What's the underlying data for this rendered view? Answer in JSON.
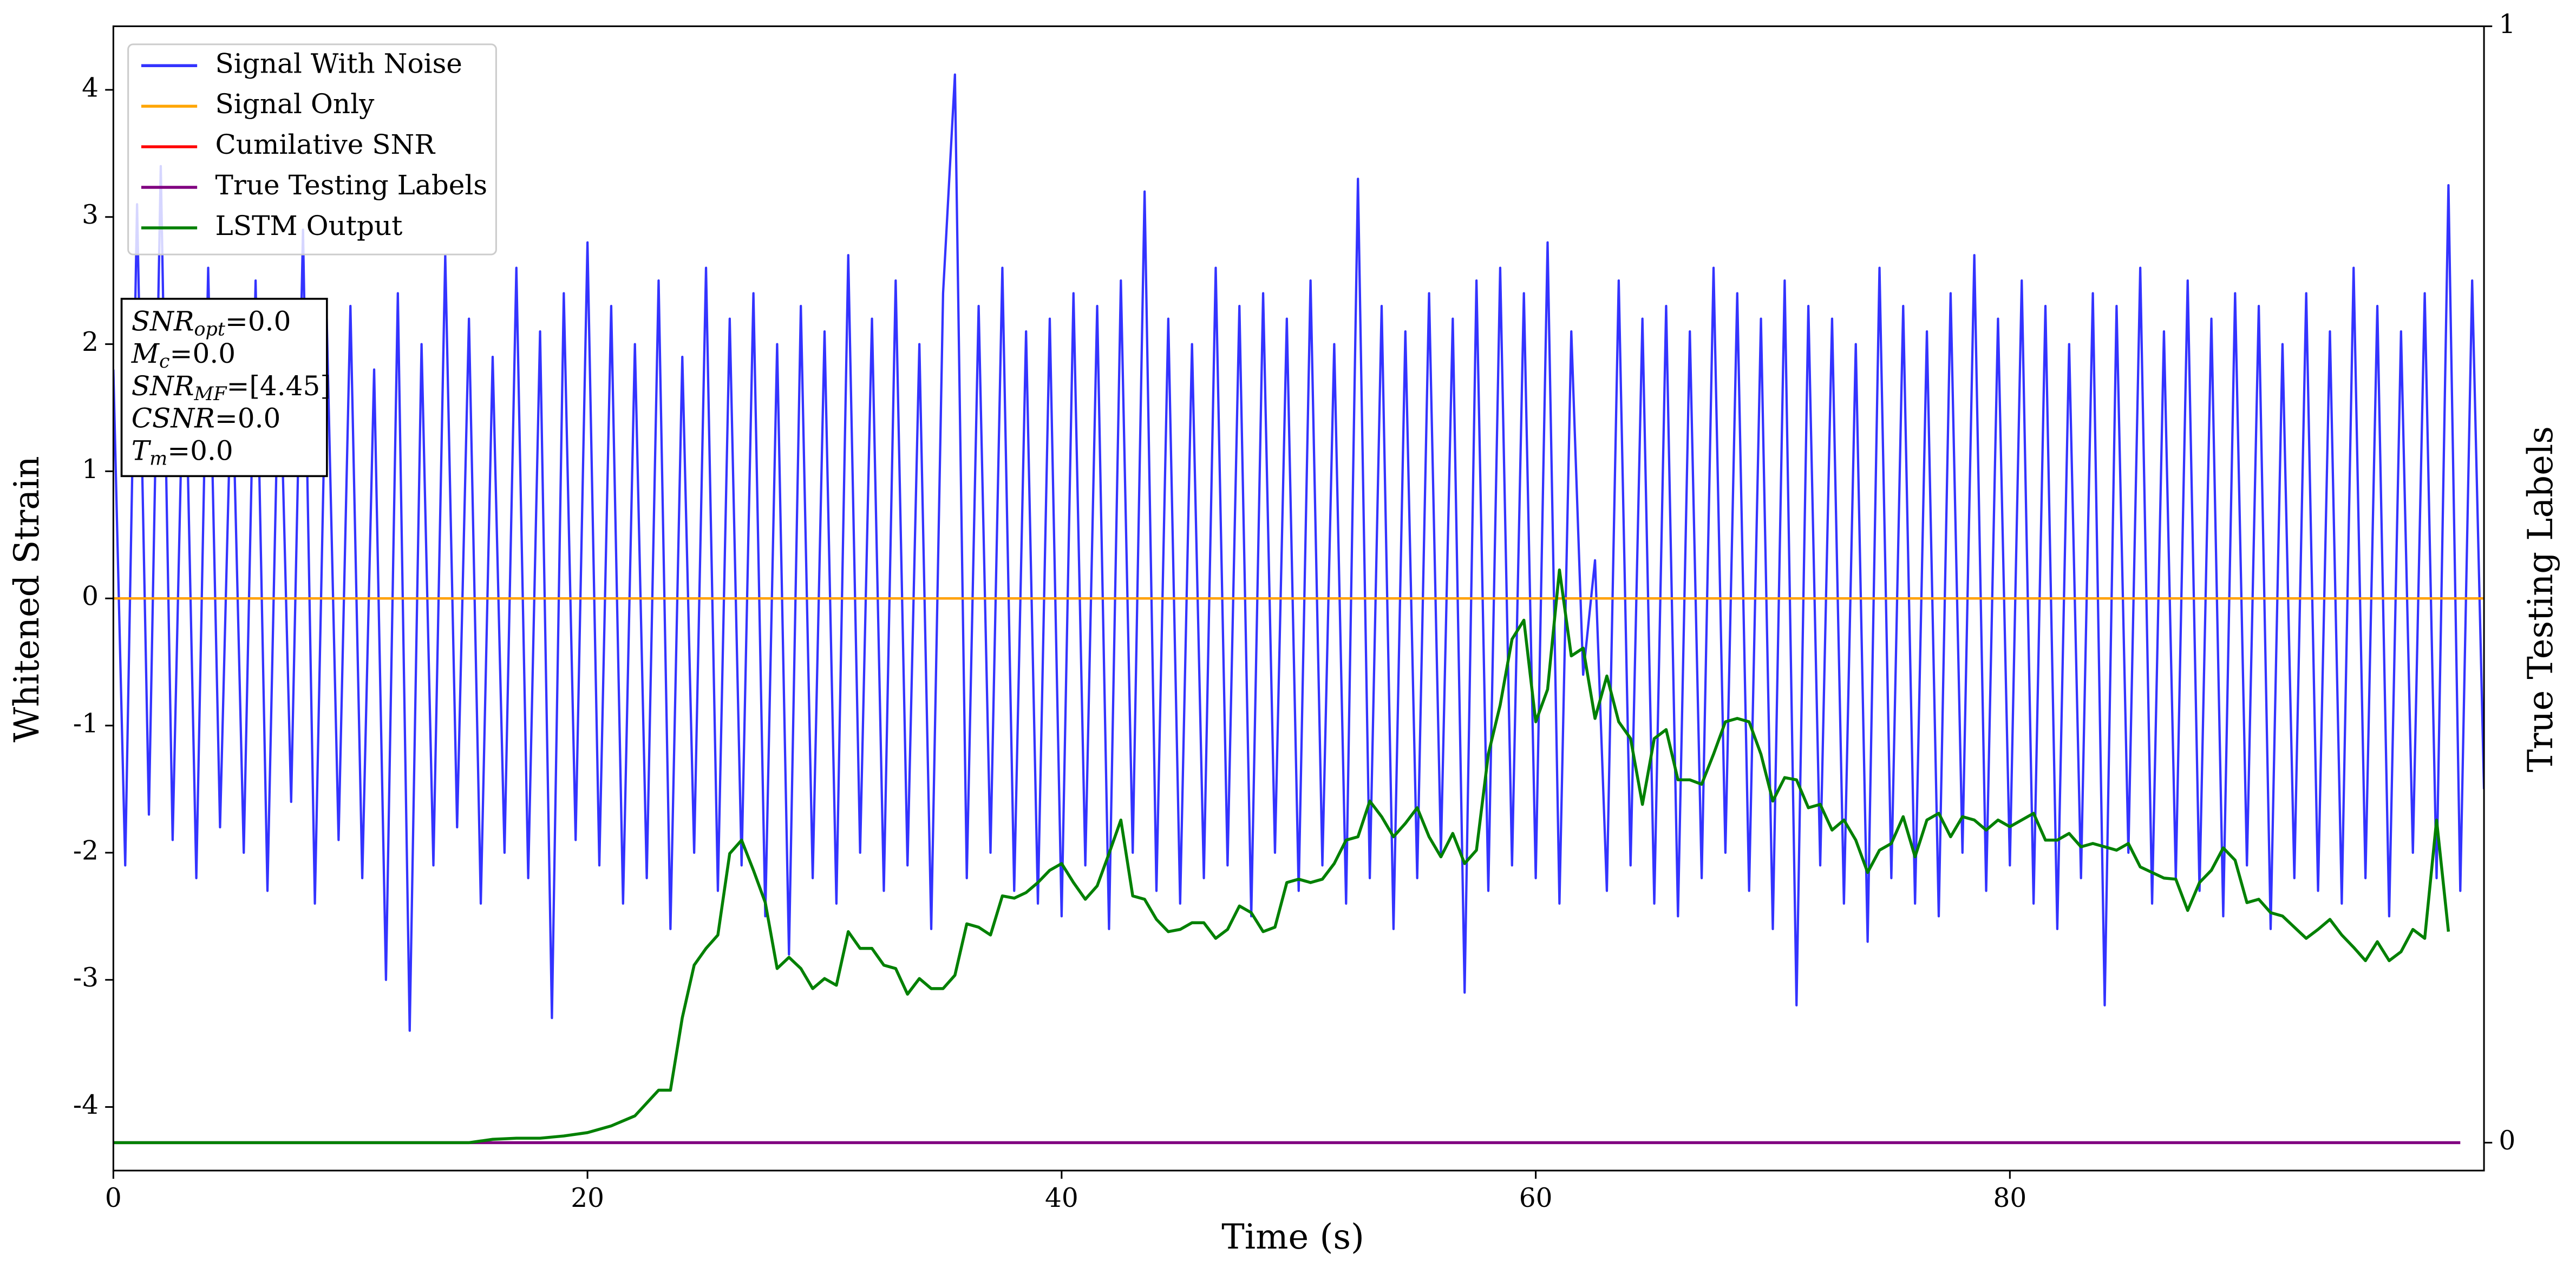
{
  "chart_data": {
    "type": "line",
    "xlabel": "Time (s)",
    "ylabel": "Whitened Strain",
    "y2label": "True Testing Labels",
    "xlim": [
      0,
      100
    ],
    "ylim": [
      -4.5,
      4.5
    ],
    "y2lim": [
      -0.025,
      1.0
    ],
    "xticks": [
      0,
      20,
      40,
      60,
      80
    ],
    "yticks": [
      -4,
      -3,
      -2,
      -1,
      0,
      1,
      2,
      3,
      4
    ],
    "y2ticks": [
      0,
      1
    ],
    "legend": "upper left",
    "series": [
      {
        "name": "Signal With Noise",
        "color": "#3333ff",
        "x": [
          0,
          0.5,
          1,
          1.5,
          2,
          2.5,
          3,
          3.5,
          4,
          4.5,
          5,
          5.5,
          6,
          6.5,
          7,
          7.5,
          8,
          8.5,
          9,
          9.5,
          10,
          10.5,
          11,
          11.5,
          12,
          12.5,
          13,
          13.5,
          14,
          14.5,
          15,
          15.5,
          16,
          16.5,
          17,
          17.5,
          18,
          18.5,
          19,
          19.5,
          20,
          20.5,
          21,
          21.5,
          22,
          22.5,
          23,
          23.5,
          24,
          24.5,
          25,
          25.5,
          26,
          26.5,
          27,
          27.5,
          28,
          28.5,
          29,
          29.5,
          30,
          30.5,
          31,
          31.5,
          32,
          32.5,
          33,
          33.5,
          34,
          34.5,
          35,
          35.5,
          36,
          36.5,
          37,
          37.5,
          38,
          38.5,
          39,
          39.5,
          40,
          40.5,
          41,
          41.5,
          42,
          42.5,
          43,
          43.5,
          44,
          44.5,
          45,
          45.5,
          46,
          46.5,
          47,
          47.5,
          48,
          48.5,
          49,
          49.5,
          50,
          50.5,
          51,
          51.5,
          52,
          52.5,
          53,
          53.5,
          54,
          54.5,
          55,
          55.5,
          56,
          56.5,
          57,
          57.5,
          58,
          58.5,
          59,
          59.5,
          60,
          60.5,
          61,
          61.5,
          62,
          62.5,
          63,
          63.5,
          64,
          64.5,
          65,
          65.5,
          66,
          66.5,
          67,
          67.5,
          68,
          68.5,
          69,
          69.5,
          70,
          70.5,
          71,
          71.5,
          72,
          72.5,
          73,
          73.5,
          74,
          74.5,
          75,
          75.5,
          76,
          76.5,
          77,
          77.5,
          78,
          78.5,
          79,
          79.5,
          80,
          80.5,
          81,
          81.5,
          82,
          82.5,
          83,
          83.5,
          84,
          84.5,
          85,
          85.5,
          86,
          86.5,
          87,
          87.5,
          88,
          88.5,
          89,
          89.5,
          90,
          90.5,
          91,
          91.5,
          92,
          92.5,
          93,
          93.5,
          94,
          94.5,
          95,
          95.5,
          96,
          96.5,
          97,
          97.5,
          98,
          98.5,
          99,
          99.5,
          100
        ],
        "values": [
          1.8,
          -2.1,
          3.1,
          -1.7,
          3.4,
          -1.9,
          2.3,
          -2.2,
          2.6,
          -1.8,
          1.9,
          -2.0,
          2.5,
          -2.3,
          2.1,
          -1.6,
          2.9,
          -2.4,
          2.2,
          -1.9,
          2.3,
          -2.2,
          1.8,
          -3.0,
          2.4,
          -3.4,
          2.0,
          -2.1,
          2.7,
          -1.8,
          2.2,
          -2.4,
          1.9,
          -2.0,
          2.6,
          -2.2,
          2.1,
          -3.3,
          2.4,
          -1.9,
          2.8,
          -2.1,
          2.3,
          -2.4,
          2.0,
          -2.2,
          2.5,
          -2.6,
          1.9,
          -2.0,
          2.6,
          -2.3,
          2.2,
          -2.1,
          2.4,
          -2.5,
          2.0,
          -2.8,
          2.3,
          -2.2,
          2.1,
          -2.4,
          2.7,
          -2.0,
          2.2,
          -2.3,
          2.5,
          -2.1,
          2.0,
          -2.6,
          2.4,
          4.12,
          -2.2,
          2.3,
          -2.0,
          2.6,
          -2.3,
          2.1,
          -2.4,
          2.2,
          -2.5,
          2.4,
          -2.1,
          2.3,
          -2.6,
          2.5,
          -2.0,
          3.2,
          -2.3,
          2.2,
          -2.4,
          2.0,
          -2.2,
          2.6,
          -2.1,
          2.3,
          -2.5,
          2.4,
          -2.0,
          2.2,
          -2.3,
          2.5,
          -2.1,
          2.0,
          -2.4,
          3.3,
          -2.2,
          2.3,
          -2.6,
          2.1,
          -2.2,
          2.4,
          -2.0,
          2.2,
          -3.1,
          2.5,
          -2.3,
          2.6,
          -2.1,
          2.4,
          -2.2,
          2.8,
          -2.4,
          2.1,
          -0.6,
          0.3,
          -2.3,
          2.5,
          -2.1,
          2.2,
          -2.4,
          2.3,
          -2.5,
          2.1,
          -2.2,
          2.6,
          -2.0,
          2.4,
          -2.3,
          2.2,
          -2.6,
          2.5,
          -3.2,
          2.3,
          -2.1,
          2.2,
          -2.4,
          2.0,
          -2.7,
          2.6,
          -2.2,
          2.3,
          -2.4,
          2.1,
          -2.5,
          2.4,
          -2.0,
          2.7,
          -2.3,
          2.2,
          -2.1,
          2.5,
          -2.4,
          2.3,
          -2.6,
          2.0,
          -2.2,
          2.4,
          -3.2,
          2.3,
          -2.0,
          2.6,
          -2.4,
          2.1,
          -2.2,
          2.5,
          -2.3,
          2.2,
          -2.5,
          2.4,
          -2.1,
          2.3,
          -2.6,
          2.0,
          -2.2,
          2.4,
          -2.3,
          2.1,
          -2.4,
          2.6,
          -2.2,
          2.3,
          -2.5,
          2.1,
          -2.0,
          2.4,
          -2.2,
          3.25,
          -2.3,
          2.5,
          -1.5
        ]
      },
      {
        "name": "Cumilative SNR",
        "color": "#ff0000",
        "x": [
          0,
          100
        ],
        "values": [
          0,
          0
        ]
      },
      {
        "name": "Signal Only",
        "color": "#ffa500",
        "x": [
          0,
          100
        ],
        "values": [
          0,
          0
        ]
      },
      {
        "name": "True Testing Labels",
        "color": "#800080",
        "axis": "y2",
        "x": [
          0,
          99
        ],
        "values": [
          0,
          0
        ]
      },
      {
        "name": "LSTM Output",
        "color": "#008000",
        "axis": "y2",
        "x": [
          0,
          1,
          2,
          3,
          4,
          5,
          6,
          7,
          8,
          9,
          10,
          11,
          12,
          13,
          14,
          15,
          16,
          17,
          18,
          19,
          20,
          21,
          22,
          23,
          23.5,
          24,
          24.5,
          25,
          25.5,
          26,
          26.5,
          27,
          27.5,
          28,
          28.5,
          29,
          29.5,
          30,
          30.5,
          31,
          31.5,
          32,
          32.5,
          33,
          33.5,
          34,
          34.5,
          35,
          35.5,
          36,
          36.5,
          37,
          37.5,
          38,
          38.5,
          39,
          39.5,
          40,
          40.5,
          41,
          41.5,
          42,
          42.5,
          43,
          43.5,
          44,
          44.5,
          45,
          45.5,
          46,
          46.5,
          47,
          47.5,
          48,
          48.5,
          49,
          49.5,
          50,
          50.5,
          51,
          51.5,
          52,
          52.5,
          53,
          53.5,
          54,
          54.5,
          55,
          55.5,
          56,
          56.5,
          57,
          57.5,
          58,
          58.5,
          59,
          59.5,
          60,
          60.5,
          61,
          61.5,
          62,
          62.5,
          63,
          63.5,
          64,
          64.5,
          65,
          65.5,
          66,
          66.5,
          67,
          67.5,
          68,
          68.5,
          69,
          69.5,
          70,
          70.5,
          71,
          71.5,
          72,
          72.5,
          73,
          73.5,
          74,
          74.5,
          75,
          75.5,
          76,
          76.5,
          77,
          77.5,
          78,
          78.5,
          79,
          79.5,
          80,
          80.5,
          81,
          81.5,
          82,
          82.5,
          83,
          83.5,
          84,
          84.5,
          85,
          85.5,
          86,
          86.5,
          87,
          87.5,
          88,
          88.5,
          89,
          89.5,
          90,
          90.5,
          91,
          91.5,
          92,
          92.5,
          93,
          93.5,
          94,
          94.5,
          95,
          95.5,
          96,
          96.5,
          97,
          97.5,
          98,
          98.5
        ],
        "values": [
          0,
          0,
          0,
          0,
          0,
          0,
          0,
          0,
          0,
          0,
          0,
          0,
          0,
          0,
          0,
          0,
          0.003,
          0.004,
          0.004,
          0.006,
          0.009,
          0.015,
          0.024,
          0.047,
          0.047,
          0.112,
          0.159,
          0.174,
          0.186,
          0.259,
          0.271,
          0.244,
          0.215,
          0.156,
          0.166,
          0.156,
          0.138,
          0.147,
          0.141,
          0.189,
          0.174,
          0.174,
          0.159,
          0.156,
          0.133,
          0.147,
          0.138,
          0.138,
          0.15,
          0.196,
          0.193,
          0.186,
          0.221,
          0.219,
          0.224,
          0.233,
          0.244,
          0.25,
          0.233,
          0.218,
          0.23,
          0.259,
          0.289,
          0.221,
          0.218,
          0.2,
          0.189,
          0.191,
          0.197,
          0.197,
          0.183,
          0.191,
          0.212,
          0.206,
          0.189,
          0.193,
          0.233,
          0.236,
          0.233,
          0.236,
          0.25,
          0.271,
          0.274,
          0.306,
          0.292,
          0.274,
          0.286,
          0.3,
          0.274,
          0.256,
          0.277,
          0.25,
          0.262,
          0.348,
          0.392,
          0.451,
          0.468,
          0.377,
          0.406,
          0.513,
          0.436,
          0.443,
          0.38,
          0.418,
          0.377,
          0.362,
          0.303,
          0.362,
          0.37,
          0.325,
          0.325,
          0.321,
          0.348,
          0.377,
          0.38,
          0.377,
          0.348,
          0.306,
          0.327,
          0.325,
          0.3,
          0.303,
          0.28,
          0.289,
          0.271,
          0.242,
          0.262,
          0.268,
          0.292,
          0.256,
          0.289,
          0.295,
          0.274,
          0.292,
          0.289,
          0.28,
          0.289,
          0.283,
          0.289,
          0.295,
          0.271,
          0.271,
          0.277,
          0.265,
          0.268,
          0.265,
          0.262,
          0.268,
          0.247,
          0.242,
          0.237,
          0.236,
          0.208,
          0.233,
          0.244,
          0.264,
          0.253,
          0.215,
          0.218,
          0.206,
          0.203,
          0.193,
          0.183,
          0.191,
          0.2,
          0.186,
          0.175,
          0.163,
          0.18,
          0.163,
          0.171,
          0.191,
          0.183,
          0.289,
          0.189
        ]
      }
    ],
    "legend_order": [
      0,
      2,
      1,
      3,
      4
    ],
    "annotation": [
      {
        "symbol": "SNR",
        "sub": "opt",
        "text": "=0.0"
      },
      {
        "symbol": "M",
        "sub": "c",
        "text": "=0.0"
      },
      {
        "symbol": "SNR",
        "sub": "MF",
        "text": "=[4.45]"
      },
      {
        "symbol": "CSNR",
        "text": "=0.0"
      },
      {
        "symbol": "T",
        "sub": "m",
        "text": "=0.0"
      }
    ]
  }
}
